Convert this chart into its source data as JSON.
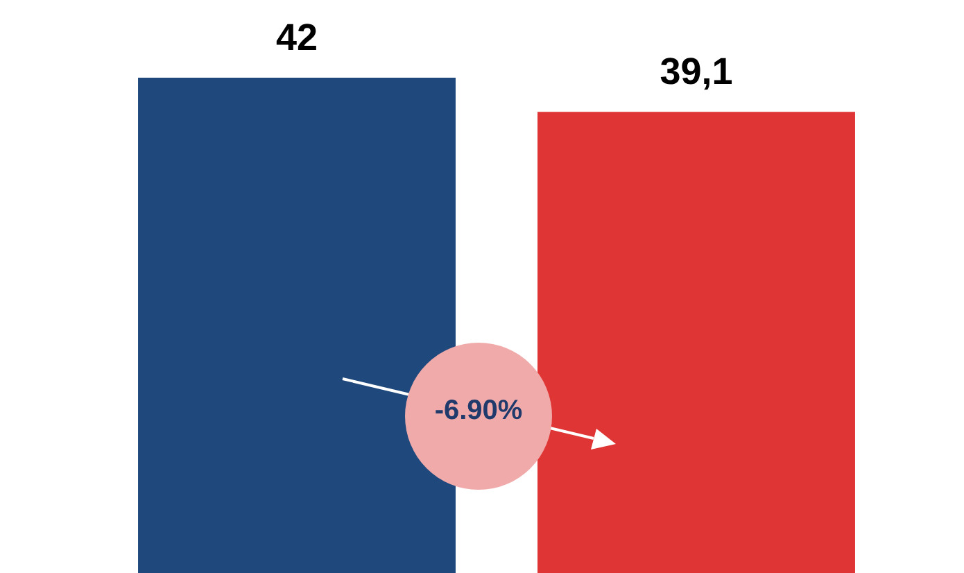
{
  "chart_data": {
    "type": "bar",
    "categories": [
      null,
      null
    ],
    "values": [
      42,
      39.1
    ],
    "colors": [
      "#1f497d",
      "#e03535"
    ],
    "value_labels": [
      "42",
      "39,1"
    ],
    "annotations": [
      "-6.90%"
    ]
  }
}
